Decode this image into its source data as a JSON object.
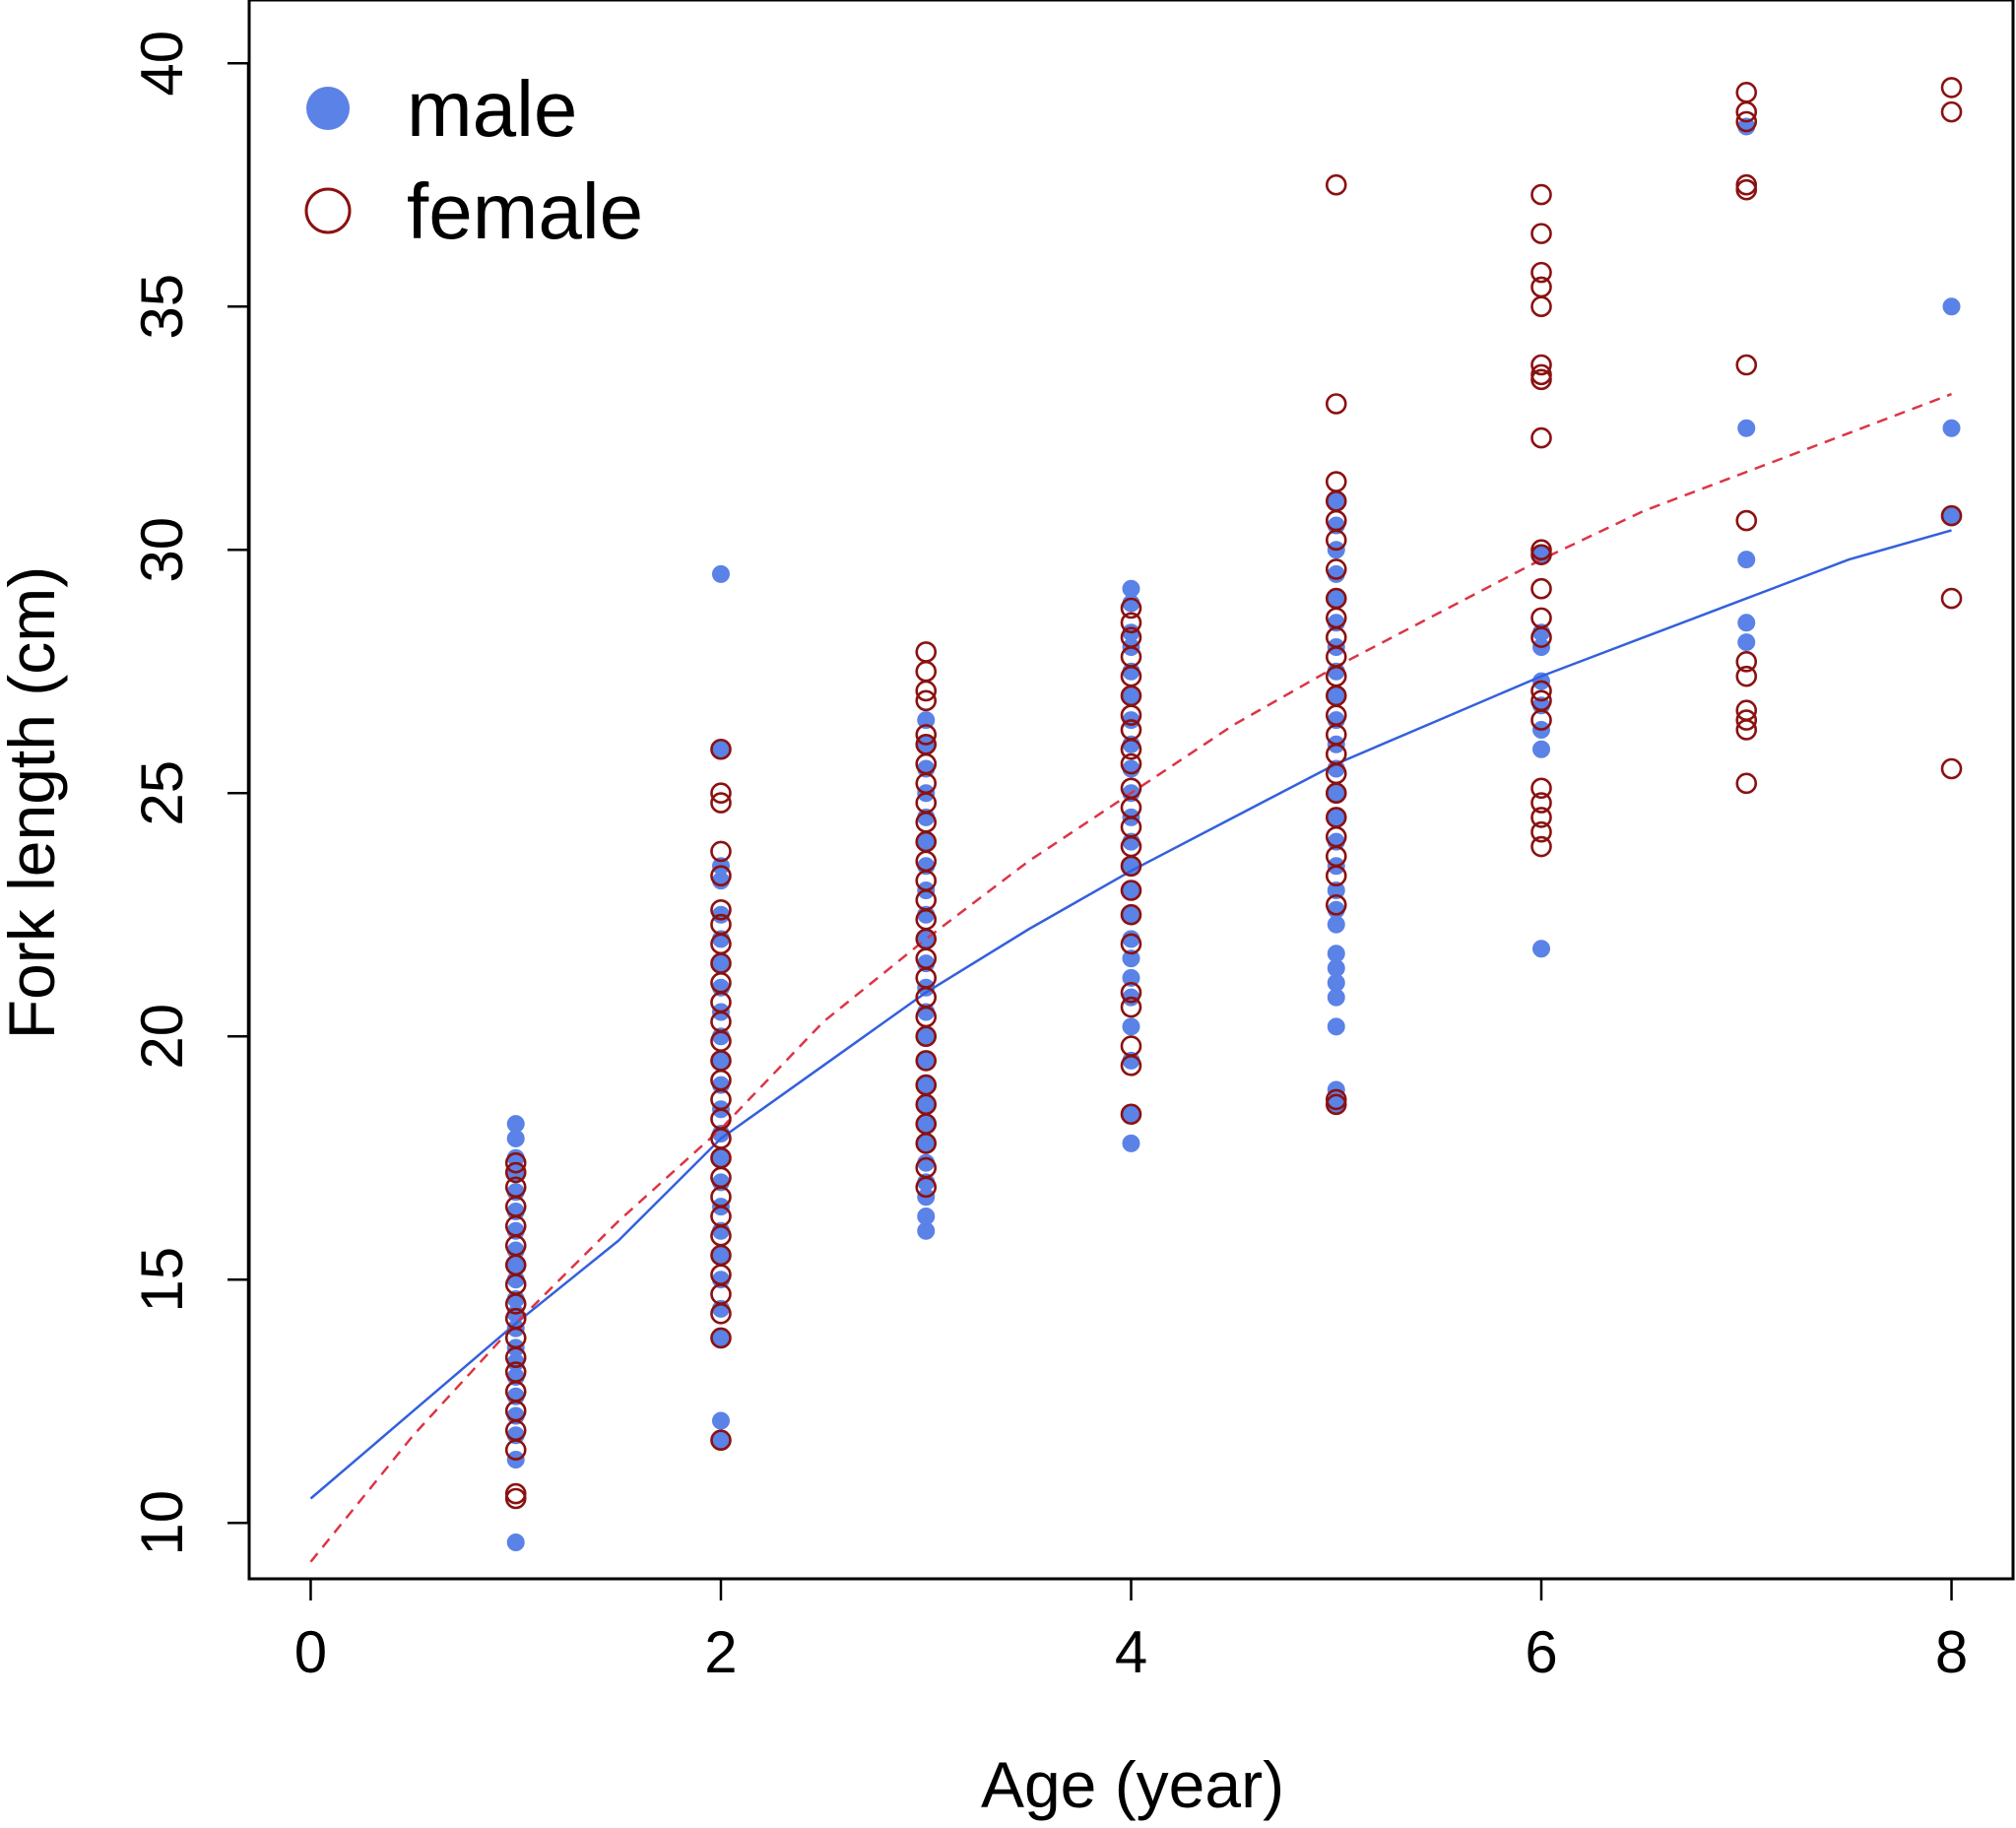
{
  "chart_data": {
    "type": "scatter",
    "title": "",
    "xlabel": "Age (year)",
    "ylabel": "Fork length (cm)",
    "xlim": [
      -0.3,
      8.3
    ],
    "ylim": [
      8.85,
      41.3
    ],
    "xticks": [
      0,
      2,
      4,
      6,
      8
    ],
    "yticks": [
      10,
      15,
      20,
      25,
      30,
      35,
      40
    ],
    "grid": false,
    "legend_position": "top-left",
    "colors": {
      "male": "#5b82e6",
      "female": "#8b1111",
      "male_curve": "#3360dd",
      "female_curve": "#dc3545"
    },
    "series": [
      {
        "name": "male",
        "marker": "filled-circle",
        "points": [
          [
            1,
            9.6
          ],
          [
            1,
            11.3
          ],
          [
            1,
            11.8
          ],
          [
            1,
            12.2
          ],
          [
            1,
            12.6
          ],
          [
            1,
            13.0
          ],
          [
            1,
            13.3
          ],
          [
            1,
            13.6
          ],
          [
            1,
            14.0
          ],
          [
            1,
            14.3
          ],
          [
            1,
            14.6
          ],
          [
            1,
            15.0
          ],
          [
            1,
            15.3
          ],
          [
            1,
            15.6
          ],
          [
            1,
            16.0
          ],
          [
            1,
            16.4
          ],
          [
            1,
            16.8
          ],
          [
            1,
            17.2
          ],
          [
            1,
            17.5
          ],
          [
            1,
            17.9
          ],
          [
            1,
            18.2
          ],
          [
            2,
            11.7
          ],
          [
            2,
            12.1
          ],
          [
            2,
            13.8
          ],
          [
            2,
            14.4
          ],
          [
            2,
            15.0
          ],
          [
            2,
            15.5
          ],
          [
            2,
            16.0
          ],
          [
            2,
            16.5
          ],
          [
            2,
            17.0
          ],
          [
            2,
            17.5
          ],
          [
            2,
            18.0
          ],
          [
            2,
            18.5
          ],
          [
            2,
            19.0
          ],
          [
            2,
            19.5
          ],
          [
            2,
            20.0
          ],
          [
            2,
            20.5
          ],
          [
            2,
            21.0
          ],
          [
            2,
            21.5
          ],
          [
            2,
            22.0
          ],
          [
            2,
            22.5
          ],
          [
            2,
            23.2
          ],
          [
            2,
            23.5
          ],
          [
            2,
            25.9
          ],
          [
            2,
            29.5
          ],
          [
            3,
            16.0
          ],
          [
            3,
            16.3
          ],
          [
            3,
            16.7
          ],
          [
            3,
            17.0
          ],
          [
            3,
            17.4
          ],
          [
            3,
            17.8
          ],
          [
            3,
            18.2
          ],
          [
            3,
            18.6
          ],
          [
            3,
            19.0
          ],
          [
            3,
            19.5
          ],
          [
            3,
            20.0
          ],
          [
            3,
            20.5
          ],
          [
            3,
            21.0
          ],
          [
            3,
            21.5
          ],
          [
            3,
            22.0
          ],
          [
            3,
            22.5
          ],
          [
            3,
            23.0
          ],
          [
            3,
            23.5
          ],
          [
            3,
            24.0
          ],
          [
            3,
            24.5
          ],
          [
            3,
            25.0
          ],
          [
            3,
            25.5
          ],
          [
            3,
            26.0
          ],
          [
            3,
            26.5
          ],
          [
            4,
            17.8
          ],
          [
            4,
            18.4
          ],
          [
            4,
            19.5
          ],
          [
            4,
            20.2
          ],
          [
            4,
            20.8
          ],
          [
            4,
            21.2
          ],
          [
            4,
            21.6
          ],
          [
            4,
            22.0
          ],
          [
            4,
            22.5
          ],
          [
            4,
            23.0
          ],
          [
            4,
            23.5
          ],
          [
            4,
            24.0
          ],
          [
            4,
            24.5
          ],
          [
            4,
            25.0
          ],
          [
            4,
            25.5
          ],
          [
            4,
            26.0
          ],
          [
            4,
            26.5
          ],
          [
            4,
            27.0
          ],
          [
            4,
            27.5
          ],
          [
            4,
            28.0
          ],
          [
            4,
            28.3
          ],
          [
            4,
            28.9
          ],
          [
            4,
            29.2
          ],
          [
            5,
            18.6
          ],
          [
            5,
            18.9
          ],
          [
            5,
            20.2
          ],
          [
            5,
            20.8
          ],
          [
            5,
            21.1
          ],
          [
            5,
            21.4
          ],
          [
            5,
            21.7
          ],
          [
            5,
            22.3
          ],
          [
            5,
            22.6
          ],
          [
            5,
            23.0
          ],
          [
            5,
            23.5
          ],
          [
            5,
            24.0
          ],
          [
            5,
            24.5
          ],
          [
            5,
            25.0
          ],
          [
            5,
            25.5
          ],
          [
            5,
            26.0
          ],
          [
            5,
            26.5
          ],
          [
            5,
            27.0
          ],
          [
            5,
            27.5
          ],
          [
            5,
            28.0
          ],
          [
            5,
            28.5
          ],
          [
            5,
            29.0
          ],
          [
            5,
            29.5
          ],
          [
            5,
            30.0
          ],
          [
            5,
            30.5
          ],
          [
            5,
            31.0
          ],
          [
            6,
            21.8
          ],
          [
            6,
            25.9
          ],
          [
            6,
            26.3
          ],
          [
            6,
            26.8
          ],
          [
            6,
            27.3
          ],
          [
            6,
            28.0
          ],
          [
            6,
            28.3
          ],
          [
            6,
            29.9
          ],
          [
            7,
            28.1
          ],
          [
            7,
            28.5
          ],
          [
            7,
            29.8
          ],
          [
            7,
            32.5
          ],
          [
            7,
            38.7
          ],
          [
            8,
            30.7
          ],
          [
            8,
            32.5
          ],
          [
            8,
            35.0
          ]
        ]
      },
      {
        "name": "female",
        "marker": "open-circle",
        "points": [
          [
            1,
            10.5
          ],
          [
            1,
            10.6
          ],
          [
            1,
            11.5
          ],
          [
            1,
            11.9
          ],
          [
            1,
            12.3
          ],
          [
            1,
            12.7
          ],
          [
            1,
            13.1
          ],
          [
            1,
            13.4
          ],
          [
            1,
            13.8
          ],
          [
            1,
            14.2
          ],
          [
            1,
            14.5
          ],
          [
            1,
            14.9
          ],
          [
            1,
            15.3
          ],
          [
            1,
            15.7
          ],
          [
            1,
            16.1
          ],
          [
            1,
            16.5
          ],
          [
            1,
            16.9
          ],
          [
            1,
            17.2
          ],
          [
            1,
            17.4
          ],
          [
            2,
            11.7
          ],
          [
            2,
            13.8
          ],
          [
            2,
            14.3
          ],
          [
            2,
            14.7
          ],
          [
            2,
            15.1
          ],
          [
            2,
            15.5
          ],
          [
            2,
            15.9
          ],
          [
            2,
            16.3
          ],
          [
            2,
            16.7
          ],
          [
            2,
            17.1
          ],
          [
            2,
            17.5
          ],
          [
            2,
            17.9
          ],
          [
            2,
            18.3
          ],
          [
            2,
            18.7
          ],
          [
            2,
            19.1
          ],
          [
            2,
            19.5
          ],
          [
            2,
            19.9
          ],
          [
            2,
            20.3
          ],
          [
            2,
            20.7
          ],
          [
            2,
            21.1
          ],
          [
            2,
            21.5
          ],
          [
            2,
            21.9
          ],
          [
            2,
            22.3
          ],
          [
            2,
            22.6
          ],
          [
            2,
            23.3
          ],
          [
            2,
            23.8
          ],
          [
            2,
            24.8
          ],
          [
            2,
            25.0
          ],
          [
            2,
            25.9
          ],
          [
            3,
            16.9
          ],
          [
            3,
            17.3
          ],
          [
            3,
            17.8
          ],
          [
            3,
            18.2
          ],
          [
            3,
            18.6
          ],
          [
            3,
            19.0
          ],
          [
            3,
            19.5
          ],
          [
            3,
            20.0
          ],
          [
            3,
            20.4
          ],
          [
            3,
            20.8
          ],
          [
            3,
            21.2
          ],
          [
            3,
            21.6
          ],
          [
            3,
            22.0
          ],
          [
            3,
            22.4
          ],
          [
            3,
            22.8
          ],
          [
            3,
            23.2
          ],
          [
            3,
            23.6
          ],
          [
            3,
            24.0
          ],
          [
            3,
            24.4
          ],
          [
            3,
            24.8
          ],
          [
            3,
            25.2
          ],
          [
            3,
            25.6
          ],
          [
            3,
            26.0
          ],
          [
            3,
            26.2
          ],
          [
            3,
            26.9
          ],
          [
            3,
            27.1
          ],
          [
            3,
            27.5
          ],
          [
            3,
            27.9
          ],
          [
            4,
            18.4
          ],
          [
            4,
            19.4
          ],
          [
            4,
            19.8
          ],
          [
            4,
            20.6
          ],
          [
            4,
            20.9
          ],
          [
            4,
            21.9
          ],
          [
            4,
            22.5
          ],
          [
            4,
            23.0
          ],
          [
            4,
            23.5
          ],
          [
            4,
            23.9
          ],
          [
            4,
            24.3
          ],
          [
            4,
            24.7
          ],
          [
            4,
            25.1
          ],
          [
            4,
            25.6
          ],
          [
            4,
            25.9
          ],
          [
            4,
            26.3
          ],
          [
            4,
            26.6
          ],
          [
            4,
            27.0
          ],
          [
            4,
            27.4
          ],
          [
            4,
            27.8
          ],
          [
            4,
            28.2
          ],
          [
            4,
            28.5
          ],
          [
            4,
            28.8
          ],
          [
            5,
            18.6
          ],
          [
            5,
            18.7
          ],
          [
            5,
            22.7
          ],
          [
            5,
            23.3
          ],
          [
            5,
            23.7
          ],
          [
            5,
            24.1
          ],
          [
            5,
            24.5
          ],
          [
            5,
            25.0
          ],
          [
            5,
            25.4
          ],
          [
            5,
            25.8
          ],
          [
            5,
            26.2
          ],
          [
            5,
            26.6
          ],
          [
            5,
            27.0
          ],
          [
            5,
            27.4
          ],
          [
            5,
            27.8
          ],
          [
            5,
            28.2
          ],
          [
            5,
            28.6
          ],
          [
            5,
            29.0
          ],
          [
            5,
            29.6
          ],
          [
            5,
            30.2
          ],
          [
            5,
            30.6
          ],
          [
            5,
            31.0
          ],
          [
            5,
            31.4
          ],
          [
            5,
            33.0
          ],
          [
            5,
            37.5
          ],
          [
            6,
            23.9
          ],
          [
            6,
            24.2
          ],
          [
            6,
            24.5
          ],
          [
            6,
            24.8
          ],
          [
            6,
            25.1
          ],
          [
            6,
            26.5
          ],
          [
            6,
            26.9
          ],
          [
            6,
            27.1
          ],
          [
            6,
            28.2
          ],
          [
            6,
            28.6
          ],
          [
            6,
            29.2
          ],
          [
            6,
            29.9
          ],
          [
            6,
            30.0
          ],
          [
            6,
            32.3
          ],
          [
            6,
            33.5
          ],
          [
            6,
            33.6
          ],
          [
            6,
            33.8
          ],
          [
            6,
            35.0
          ],
          [
            6,
            35.4
          ],
          [
            6,
            35.7
          ],
          [
            6,
            36.5
          ],
          [
            6,
            37.3
          ],
          [
            7,
            25.2
          ],
          [
            7,
            26.3
          ],
          [
            7,
            26.5
          ],
          [
            7,
            26.7
          ],
          [
            7,
            27.4
          ],
          [
            7,
            27.7
          ],
          [
            7,
            30.6
          ],
          [
            7,
            33.8
          ],
          [
            7,
            37.4
          ],
          [
            7,
            37.5
          ],
          [
            7,
            38.8
          ],
          [
            7,
            39.0
          ],
          [
            7,
            39.4
          ],
          [
            8,
            25.5
          ],
          [
            8,
            29.0
          ],
          [
            8,
            30.7
          ],
          [
            8,
            39.0
          ],
          [
            8,
            39.5
          ]
        ]
      }
    ],
    "curves": [
      {
        "name": "male",
        "style": "solid",
        "x": [
          0,
          0.5,
          1,
          1.5,
          2,
          2.5,
          3,
          3.5,
          4,
          4.5,
          5,
          5.5,
          6,
          6.5,
          7,
          7.5,
          8
        ],
        "y": [
          10.5,
          12.3,
          14.1,
          15.8,
          17.9,
          19.4,
          20.9,
          22.2,
          23.4,
          24.5,
          25.6,
          26.5,
          27.4,
          28.2,
          29.0,
          29.8,
          30.4
        ]
      },
      {
        "name": "female",
        "style": "dashed",
        "x": [
          0,
          0.5,
          1,
          1.5,
          2,
          2.5,
          3,
          3.5,
          4,
          4.5,
          5,
          5.5,
          6,
          6.5,
          7,
          7.5,
          8
        ],
        "y": [
          9.2,
          11.8,
          14.1,
          16.2,
          18.1,
          20.3,
          22.0,
          23.6,
          25.0,
          26.4,
          27.6,
          28.7,
          29.8,
          30.8,
          31.6,
          32.4,
          33.2
        ]
      }
    ],
    "legend": [
      {
        "label": "male",
        "series": "male"
      },
      {
        "label": "female",
        "series": "female"
      }
    ]
  }
}
